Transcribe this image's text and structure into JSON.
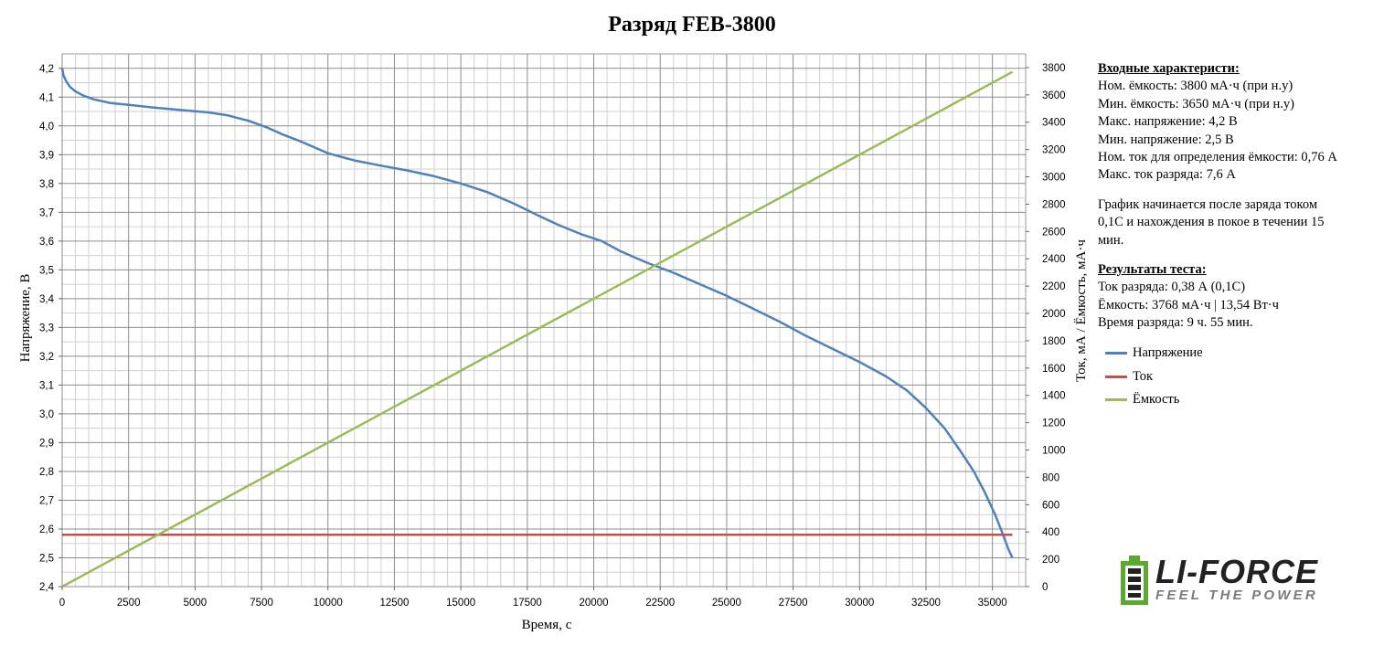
{
  "chart_data": {
    "type": "line",
    "title": "Разряд FEB-3800",
    "xlabel": "Время, с",
    "ylabel_left": "Напряжение, В",
    "ylabel_right": "Ток, мА / Ёмкость, мА·ч",
    "xlim": [
      0,
      36250
    ],
    "x_ticks": [
      0,
      2500,
      5000,
      7500,
      10000,
      12500,
      15000,
      17500,
      20000,
      22500,
      25000,
      27500,
      30000,
      32500,
      35000
    ],
    "ylim_left": [
      2.4,
      4.25
    ],
    "y_left_ticks": [
      "2,4",
      "2,5",
      "2,6",
      "2,7",
      "2,8",
      "2,9",
      "3,0",
      "3,1",
      "3,2",
      "3,3",
      "3,4",
      "3,5",
      "3,6",
      "3,7",
      "3,8",
      "3,9",
      "4,0",
      "4,1",
      "4,2"
    ],
    "ylim_right": [
      0,
      3900
    ],
    "y_right_ticks": [
      0,
      200,
      400,
      600,
      800,
      1000,
      1200,
      1400,
      1600,
      1800,
      2000,
      2200,
      2400,
      2600,
      2800,
      3000,
      3200,
      3400,
      3600,
      3800
    ],
    "grid": true,
    "series": [
      {
        "name": "Напряжение",
        "axis": "left",
        "color": "#4f81bd",
        "x": [
          0,
          50,
          150,
          300,
          500,
          800,
          1200,
          1800,
          2500,
          3500,
          4500,
          5500,
          6200,
          7000,
          7700,
          8300,
          9000,
          10000,
          11000,
          12000,
          13000,
          14000,
          15000,
          16000,
          17000,
          18000,
          18700,
          19500,
          20300,
          21000,
          22000,
          23000,
          24000,
          25000,
          26000,
          27000,
          28000,
          29000,
          30000,
          31000,
          31800,
          32500,
          33200,
          33800,
          34300,
          34700,
          35100,
          35400,
          35600,
          35750
        ],
        "y": [
          4.2,
          4.175,
          4.155,
          4.135,
          4.12,
          4.105,
          4.092,
          4.08,
          4.073,
          4.063,
          4.055,
          4.047,
          4.037,
          4.018,
          3.995,
          3.97,
          3.945,
          3.905,
          3.88,
          3.862,
          3.845,
          3.825,
          3.8,
          3.77,
          3.73,
          3.685,
          3.655,
          3.625,
          3.6,
          3.565,
          3.525,
          3.49,
          3.45,
          3.41,
          3.365,
          3.32,
          3.27,
          3.225,
          3.18,
          3.13,
          3.08,
          3.02,
          2.95,
          2.87,
          2.8,
          2.73,
          2.65,
          2.58,
          2.53,
          2.5
        ]
      },
      {
        "name": "Ток",
        "axis": "right",
        "color": "#c0504d",
        "x": [
          0,
          35750
        ],
        "y": [
          380,
          380
        ]
      },
      {
        "name": "Ёмкость",
        "axis": "right",
        "color": "#9bbb59",
        "x": [
          0,
          35750
        ],
        "y": [
          0,
          3768
        ]
      }
    ]
  },
  "info": {
    "section1_title": "Входные характеристи:",
    "lines1": [
      "Ном. ёмкость: 3800 мА·ч (при н.у)",
      "Мин. ёмкость: 3650 мА·ч (при н.у)",
      "Макс. напряжение: 4,2 В",
      "Мин. напряжение: 2,5 В",
      "Ном. ток для определения ёмкости: 0,76 А",
      "Макс. ток разряда: 7,6 А"
    ],
    "note_lines": [
      "График начинается после заряда током",
      "0,1С и нахождения в покое в течении 15",
      "мин."
    ],
    "section2_title": "Результаты теста:",
    "lines2": [
      "Ток разряда: 0,38 А (0,1С)",
      "Ёмкость: 3768 мА·ч | 13,54 Вт·ч",
      "Время разряда: 9 ч. 55 мин."
    ]
  },
  "logo": {
    "main": "LI-FORCE",
    "sub": "FEEL THE POWER",
    "color_green": "#5aaa32"
  }
}
